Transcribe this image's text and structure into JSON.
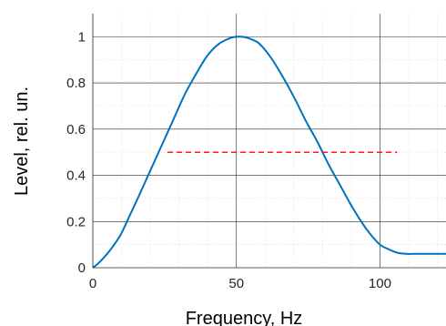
{
  "chart_data": {
    "type": "line",
    "title": "",
    "xlabel": "Frequency, Hz",
    "ylabel": "Level, rel. un.",
    "xlim": [
      0,
      123
    ],
    "ylim": [
      0,
      1.1
    ],
    "x_ticks": [
      0,
      50,
      100
    ],
    "x_tick_labels": [
      "0",
      "50",
      "100"
    ],
    "y_ticks": [
      0,
      0.2,
      0.4,
      0.6,
      0.8,
      1
    ],
    "y_tick_labels": [
      "0",
      "0.2",
      "0.4",
      "0.6",
      "0.8",
      "1"
    ],
    "grid": {
      "major": true,
      "minor": true
    },
    "legend": "none",
    "series": [
      {
        "color": "#0072BD",
        "style": "solid",
        "x": [
          0,
          2,
          5,
          8,
          10,
          13,
          16,
          20,
          24,
          28,
          32,
          36,
          40,
          44,
          48,
          50,
          52,
          53,
          55,
          58,
          62,
          66,
          70,
          74,
          78,
          82,
          86,
          90,
          94,
          97,
          100,
          103,
          106,
          109,
          112,
          116,
          120,
          123
        ],
        "y": [
          0,
          0.02,
          0.06,
          0.11,
          0.15,
          0.23,
          0.31,
          0.42,
          0.53,
          0.64,
          0.75,
          0.84,
          0.92,
          0.97,
          0.995,
          1.0,
          1.0,
          0.998,
          0.99,
          0.97,
          0.91,
          0.83,
          0.74,
          0.64,
          0.55,
          0.45,
          0.36,
          0.27,
          0.19,
          0.14,
          0.1,
          0.08,
          0.065,
          0.06,
          0.06,
          0.06,
          0.06,
          0.06
        ]
      },
      {
        "color": "#FF0000",
        "style": "dashed",
        "x": [
          26,
          106
        ],
        "y": [
          0.5,
          0.5
        ]
      }
    ]
  }
}
